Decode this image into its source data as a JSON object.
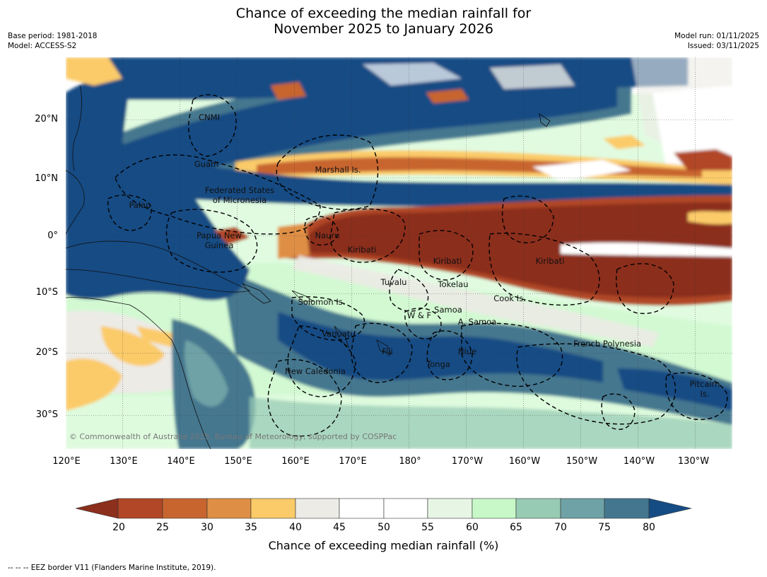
{
  "title": {
    "line1": "Chance of exceeding the median rainfall for",
    "line2": "November 2025 to January 2026"
  },
  "meta_left": {
    "base_period": "Base period: 1981-2018",
    "model": "Model: ACCESS-S2"
  },
  "meta_right": {
    "model_run": "Model run: 01/11/2025",
    "issued": "Issued: 03/11/2025"
  },
  "axes": {
    "lat_labels": [
      "20°N",
      "10°N",
      "0°",
      "10°S",
      "20°S",
      "30°S"
    ],
    "lon_labels": [
      "120°E",
      "130°E",
      "140°E",
      "150°E",
      "160°E",
      "170°E",
      "180°",
      "170°W",
      "160°W",
      "150°W",
      "140°W",
      "130°W"
    ]
  },
  "places": {
    "cnmi": "CNMI",
    "guam": "Guam",
    "marshall": "Marshall Is.",
    "fsm_1": "Federated States",
    "fsm_2": "of Micronesia",
    "palau": "Palau",
    "png_1": "Papua New",
    "png_2": "Guinea",
    "nauru": "Nauru",
    "kiribati_w": "Kiribati",
    "kiribati_c": "Kiribati",
    "kiribati_e": "Kiribati",
    "tuvalu": "Tuvalu",
    "tokelau": "Tokelau",
    "cook": "Cook Is.",
    "solomon": "Solomon Is.",
    "samoa": "Samoa",
    "wf": "W & F",
    "asamoa": "A. Samoa",
    "vanuatu": "Vanuatu",
    "fiji": "Fiji",
    "niue": "Niue",
    "tonga": "Tonga",
    "newcal": "New Caledonia",
    "frpoly": "French Polynesia",
    "pitcairn_1": "Pitcairn",
    "pitcairn_2": "Is."
  },
  "copyright": "© Commonwealth of Australia 2025, Bureau of Meteorology, supported by COSPPac",
  "colorbar": {
    "title": "Chance of exceeding median rainfall (%)",
    "ticks": [
      "20",
      "25",
      "30",
      "35",
      "40",
      "45",
      "50",
      "55",
      "60",
      "65",
      "70",
      "75",
      "80"
    ],
    "colors": [
      "#8c2f1c",
      "#b14726",
      "#c8652f",
      "#df8f45",
      "#fbcb69",
      "#ecebe6",
      "#ffffff",
      "#ffffff",
      "#e6f5e4",
      "#c8f8c8",
      "#98cbb4",
      "#6ea2a6",
      "#44778f",
      "#164c84"
    ]
  },
  "eez_note": "--  --  -- EEZ border V11 (Flanders Marine Institute, 2019)."
}
